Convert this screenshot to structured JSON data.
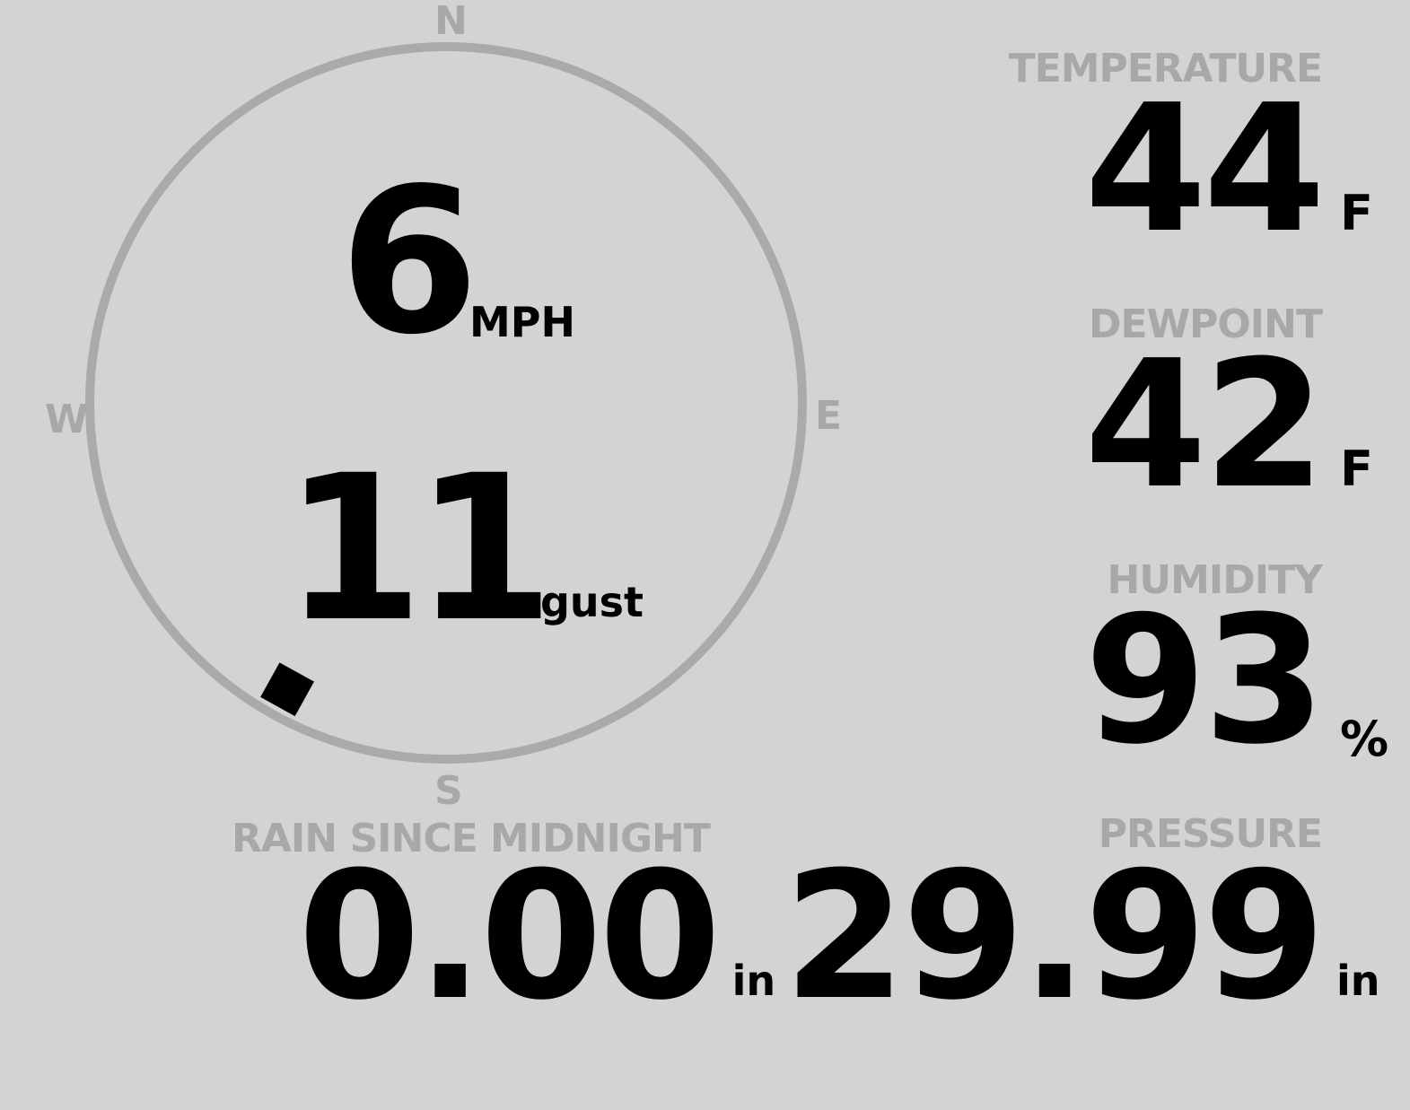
{
  "wind": {
    "speed": "6",
    "speed_unit": "MPH",
    "gust": "11",
    "gust_label": "gust",
    "direction_degrees": 209,
    "compass": {
      "n": "N",
      "e": "E",
      "s": "S",
      "w": "W"
    }
  },
  "temperature": {
    "label": "TEMPERATURE",
    "value": "44",
    "unit": "F"
  },
  "dewpoint": {
    "label": "DEWPOINT",
    "value": "42",
    "unit": "F"
  },
  "humidity": {
    "label": "HUMIDITY",
    "value": "93",
    "unit": "%"
  },
  "rain": {
    "label": "RAIN SINCE MIDNIGHT",
    "value": "0.00",
    "unit": "in"
  },
  "pressure": {
    "label": "PRESSURE",
    "value": "29.99",
    "unit": "in"
  },
  "colors": {
    "background": "#d3d3d3",
    "label": "#a8a8a8",
    "value": "#000000",
    "ring": "#aaaaaa"
  }
}
